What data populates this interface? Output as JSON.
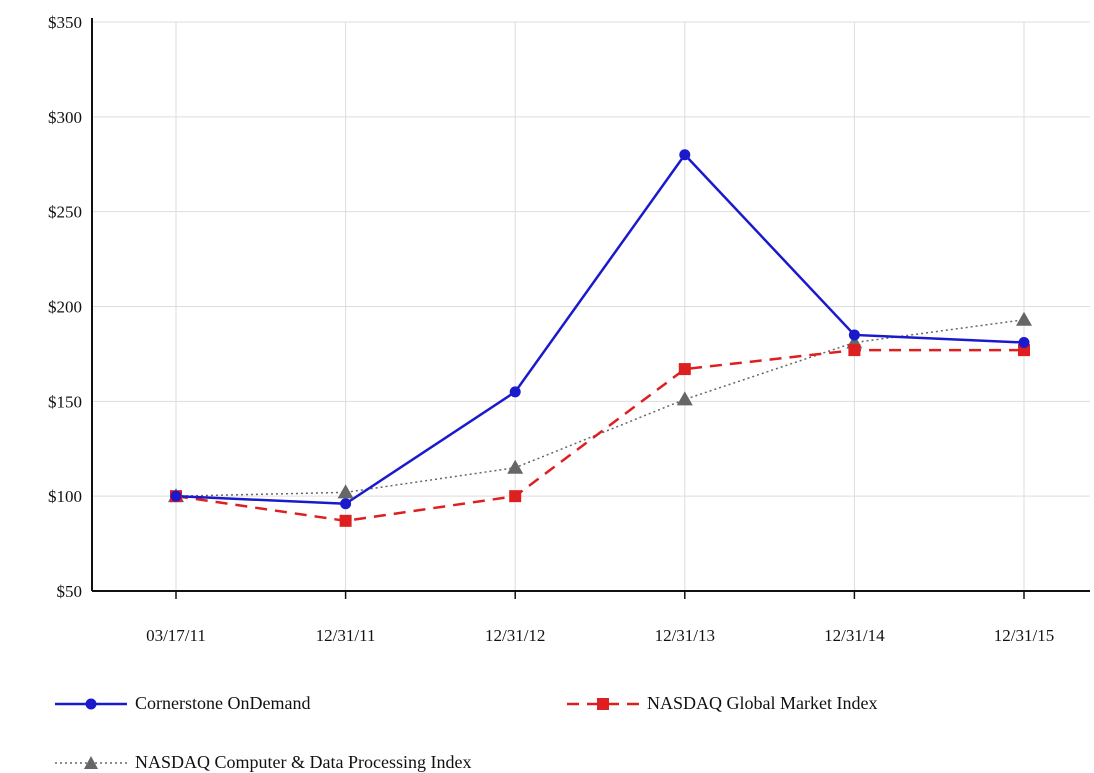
{
  "chart_data": {
    "type": "line",
    "title": "",
    "xlabel": "",
    "ylabel": "",
    "categories": [
      "03/17/11",
      "12/31/11",
      "12/31/12",
      "12/31/13",
      "12/31/14",
      "12/31/15"
    ],
    "y_ticks": [
      "$50",
      "$100",
      "$150",
      "$200",
      "$250",
      "$300",
      "$350"
    ],
    "ylim": [
      50,
      350
    ],
    "grid": true,
    "legend_position": "bottom",
    "series": [
      {
        "name": "Cornerstone OnDemand",
        "values": [
          100,
          96,
          155,
          280,
          185,
          181
        ],
        "color": "#1a1acc",
        "marker": "circle",
        "line": "solid"
      },
      {
        "name": "NASDAQ Global Market Index",
        "values": [
          100,
          87,
          100,
          167,
          177,
          177
        ],
        "color": "#dd1f1f",
        "marker": "square",
        "line": "dashed"
      },
      {
        "name": "NASDAQ Computer & Data Processing Index",
        "values": [
          100,
          102,
          115,
          151,
          181,
          193
        ],
        "color": "#666666",
        "marker": "triangle",
        "line": "dotted"
      }
    ]
  }
}
